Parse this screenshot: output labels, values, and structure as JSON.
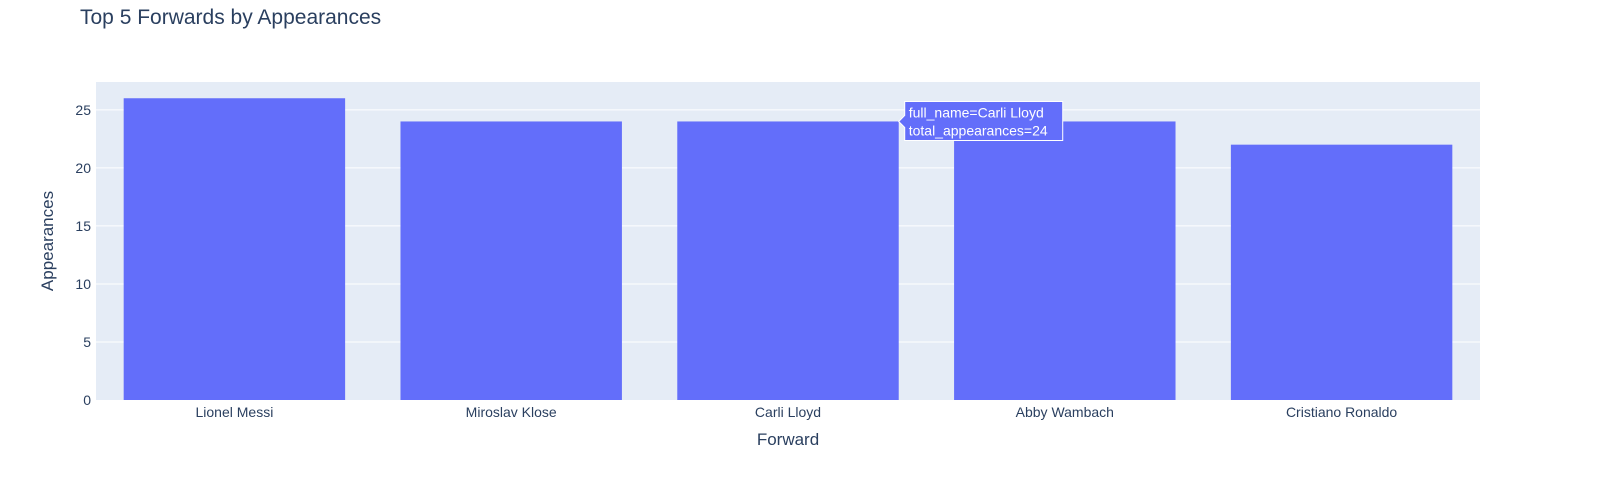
{
  "chart_data": {
    "type": "bar",
    "title": "Top 5 Forwards by Appearances",
    "xlabel": "Forward",
    "ylabel": "Appearances",
    "categories": [
      "Lionel Messi",
      "Miroslav Klose",
      "Carli Lloyd",
      "Abby Wambach",
      "Cristiano Ronaldo"
    ],
    "values": [
      26,
      24,
      24,
      24,
      22
    ],
    "ylim": [
      0,
      27.4
    ],
    "yticks": [
      0,
      5,
      10,
      15,
      20,
      25
    ],
    "grid": true,
    "legend": "none",
    "colors": {
      "bar": "#636efa",
      "plot_bg": "#e5ecf6",
      "gridline": "#ffffff",
      "text": "#2a3f5f",
      "tick_text": "#2a3f5f"
    },
    "hover": {
      "category_index": 2,
      "lines": [
        "full_name=Carli Lloyd",
        "total_appearances=24"
      ]
    }
  }
}
